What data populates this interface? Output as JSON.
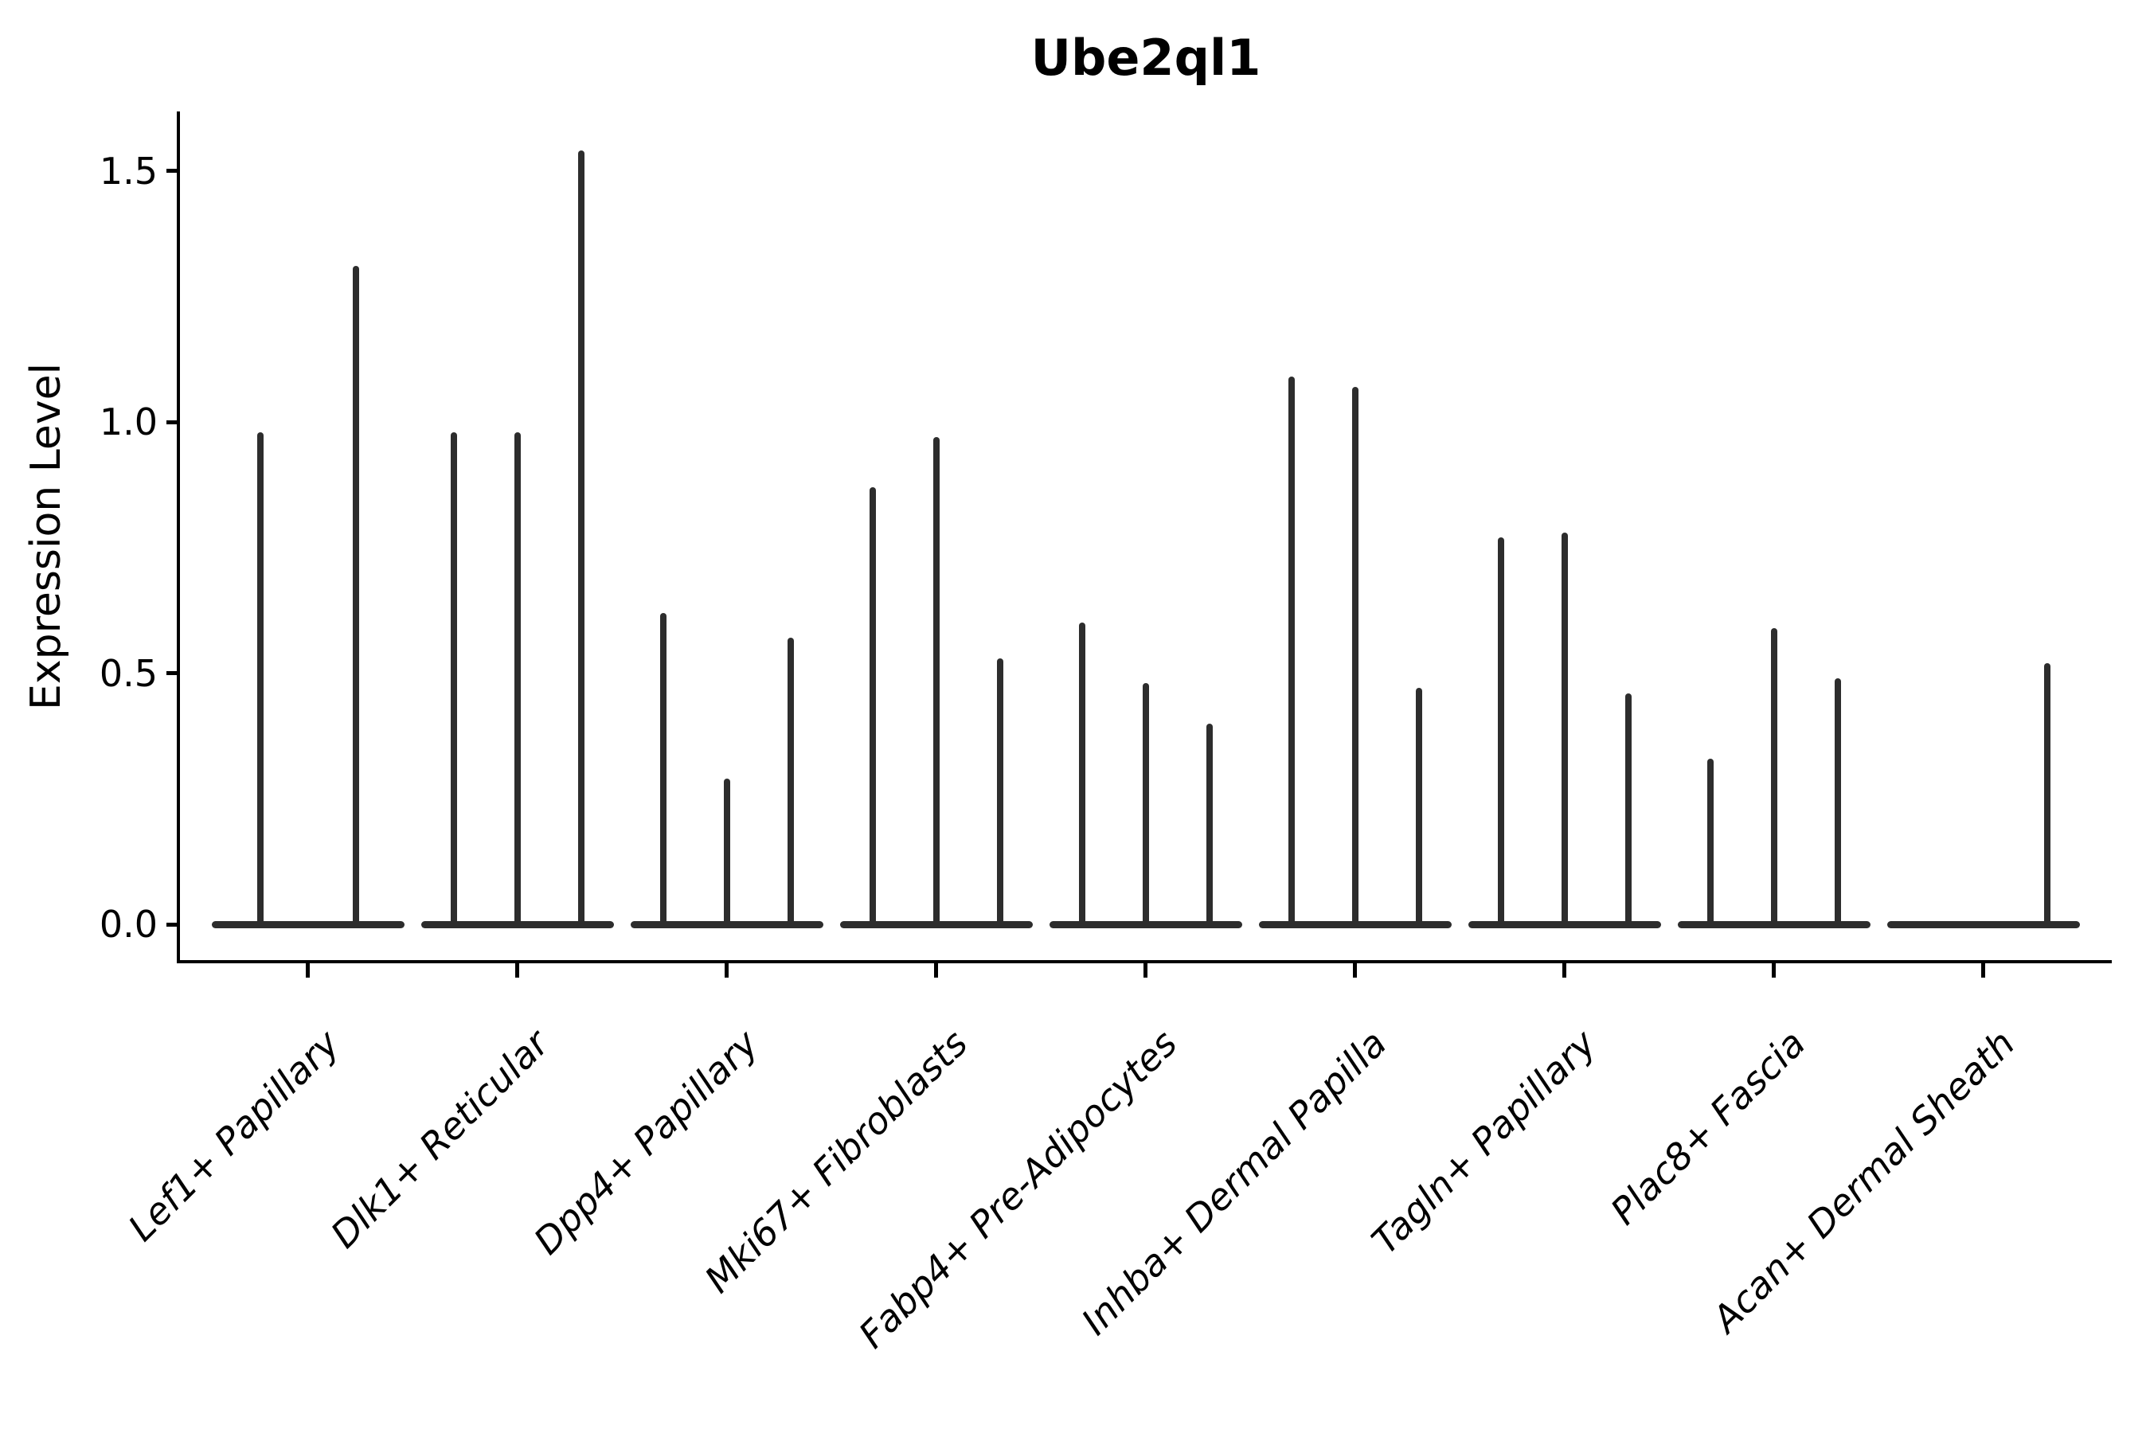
{
  "title": "Ube2ql1",
  "y_axis": {
    "label": "Expression Level",
    "tick_labels": [
      "0.0",
      "0.5",
      "1.0",
      "1.5"
    ]
  },
  "chart_data": {
    "type": "violin",
    "title": "Ube2ql1",
    "xlabel": "",
    "ylabel": "Expression Level",
    "ylim": [
      -0.07,
      1.61
    ],
    "y_ticks": [
      0.0,
      0.5,
      1.0,
      1.5
    ],
    "grid": false,
    "legend": "none",
    "description": "Sparse single-cell expression violins: each category shows a flat density base at 0 with thin spikes reaching the maximum expression of each sub-violin",
    "categories": [
      "Lef1+ Papillary",
      "Dlk1+ Reticular",
      "Dpp4+ Papillary",
      "Mki67+ Fibroblasts",
      "Fabp4+ Pre-Adipocytes",
      "Inhba+ Dermal Papilla",
      "Tagln+ Papillary",
      "Plac8+ Fascia",
      "Acan+ Dermal Sheath"
    ],
    "series": [
      {
        "category": "Lef1+ Papillary",
        "violins": [
          {
            "dx": -60,
            "max": 0.98
          },
          {
            "dx": 60,
            "max": 1.31
          }
        ]
      },
      {
        "category": "Dlk1+ Reticular",
        "violins": [
          {
            "dx": -80,
            "max": 0.98
          },
          {
            "dx": 0,
            "max": 0.98
          },
          {
            "dx": 80,
            "max": 1.54
          }
        ]
      },
      {
        "category": "Dpp4+ Papillary",
        "violins": [
          {
            "dx": -80,
            "max": 0.62
          },
          {
            "dx": 0,
            "max": 0.29
          },
          {
            "dx": 80,
            "max": 0.57
          }
        ]
      },
      {
        "category": "Mki67+ Fibroblasts",
        "violins": [
          {
            "dx": -80,
            "max": 0.87
          },
          {
            "dx": 0,
            "max": 0.97
          },
          {
            "dx": 80,
            "max": 0.53
          }
        ]
      },
      {
        "category": "Fabp4+ Pre-Adipocytes",
        "violins": [
          {
            "dx": -80,
            "max": 0.6
          },
          {
            "dx": 0,
            "max": 0.48
          },
          {
            "dx": 80,
            "max": 0.4
          }
        ]
      },
      {
        "category": "Inhba+ Dermal Papilla",
        "violins": [
          {
            "dx": -80,
            "max": 1.09
          },
          {
            "dx": 0,
            "max": 1.07
          },
          {
            "dx": 80,
            "max": 0.47
          }
        ]
      },
      {
        "category": "Tagln+ Papillary",
        "violins": [
          {
            "dx": -80,
            "max": 0.77
          },
          {
            "dx": 0,
            "max": 0.78
          },
          {
            "dx": 80,
            "max": 0.46
          }
        ]
      },
      {
        "category": "Plac8+ Fascia",
        "violins": [
          {
            "dx": -80,
            "max": 0.33
          },
          {
            "dx": 0,
            "max": 0.59
          },
          {
            "dx": 80,
            "max": 0.49
          }
        ]
      },
      {
        "category": "Acan+ Dermal Sheath",
        "violins": [
          {
            "dx": 80,
            "max": 0.52
          }
        ]
      }
    ],
    "style": {
      "violin_color": "#2d2d2d",
      "axis_color": "#000000",
      "background": "#ffffff"
    }
  }
}
